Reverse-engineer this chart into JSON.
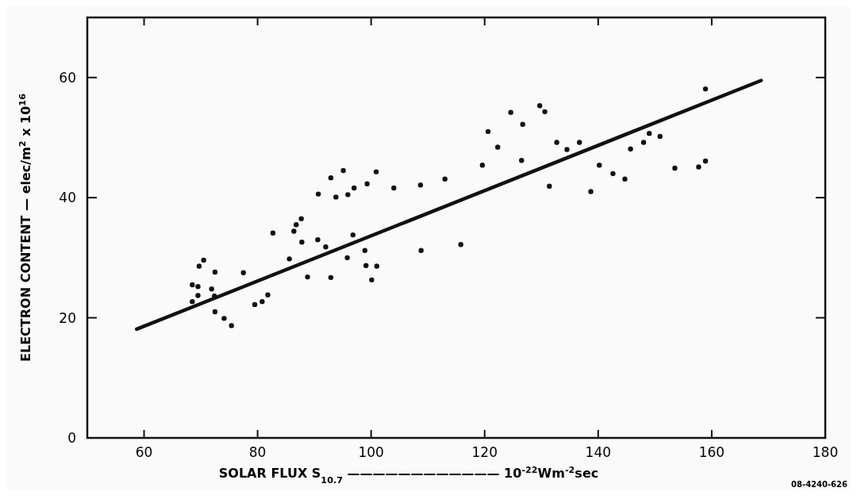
{
  "chart_data": {
    "type": "scatter",
    "xlabel": "SOLAR FLUX S$_{10.7}$ ———————————— 10$^{-22}$Wm$^{-2}$sec",
    "ylabel": "ELECTRON CONTENT — elec/m$^{2}$ x 10$^{16}$",
    "annotations": [
      "08-4240-626"
    ],
    "xlim": [
      50,
      180
    ],
    "ylim": [
      0,
      70
    ],
    "xticks": [
      60,
      80,
      100,
      120,
      140,
      160,
      180
    ],
    "yticks": [
      0,
      20,
      40,
      60
    ],
    "grid": false,
    "marker": "circle",
    "series": [
      {
        "color": "#111111",
        "x": [
          68.5,
          69.5,
          69.5,
          68.5,
          69.7,
          70.5,
          72.5,
          71.9,
          72.4,
          72.5,
          74.1,
          75.4,
          77.5,
          79.5,
          80.8,
          81.8,
          82.7,
          85.6,
          86.4,
          86.8,
          87.7,
          87.8,
          88.8,
          90.7,
          90.6,
          92.0,
          92.9,
          92.9,
          93.8,
          95.1,
          95.9,
          97.0,
          96.8,
          95.8,
          99.3,
          100.9,
          98.9,
          99.1,
          101.0,
          100.1,
          104.0,
          108.7,
          108.8,
          113.0,
          115.8,
          119.6,
          120.6,
          122.3,
          124.6,
          126.5,
          126.7,
          129.7,
          130.6,
          131.4,
          132.7,
          134.5,
          136.7,
          138.7,
          140.2,
          142.6,
          144.7,
          145.7,
          148.0,
          149.0,
          150.9,
          153.5,
          157.7,
          158.9,
          158.9
        ],
        "values": [
          25.5,
          25.2,
          23.7,
          22.7,
          28.6,
          29.6,
          27.6,
          24.8,
          23.6,
          21.0,
          19.9,
          18.7,
          27.5,
          22.2,
          22.7,
          23.8,
          34.1,
          29.8,
          34.4,
          35.5,
          36.5,
          32.6,
          26.8,
          40.6,
          33.0,
          31.8,
          43.3,
          26.7,
          40.1,
          44.5,
          40.5,
          41.6,
          33.8,
          30.0,
          42.3,
          44.3,
          31.2,
          28.7,
          28.6,
          26.3,
          41.6,
          42.1,
          31.2,
          43.1,
          32.2,
          45.4,
          51.0,
          48.4,
          54.2,
          46.2,
          52.2,
          55.3,
          54.3,
          41.9,
          49.2,
          48.0,
          49.2,
          41.0,
          45.4,
          44.0,
          43.1,
          48.1,
          49.2,
          50.7,
          50.2,
          44.9,
          45.1,
          46.1,
          58.1
        ]
      },
      {
        "type": "line",
        "color": "#111111",
        "line_style": "solid",
        "marker": "none",
        "x": [
          58.7,
          168.7
        ],
        "values": [
          18.1,
          59.5
        ]
      }
    ]
  }
}
